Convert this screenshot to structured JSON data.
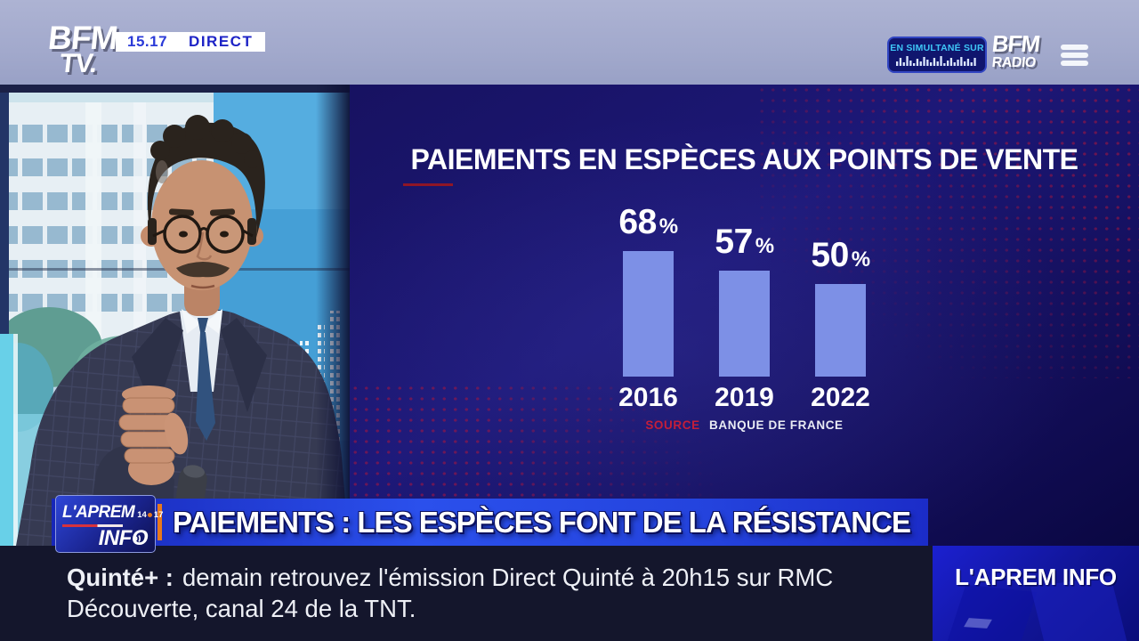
{
  "chart_data": {
    "type": "bar",
    "title": "PAIEMENTS EN ESPÈCES AUX POINTS DE VENTE",
    "categories": [
      "2016",
      "2019",
      "2022"
    ],
    "values": [
      68,
      57,
      50
    ],
    "value_labels": [
      "68",
      "57",
      "50"
    ],
    "unit": "%",
    "source_label": "SOURCE",
    "source_name": "BANQUE DE FRANCE",
    "ylim": [
      0,
      100
    ],
    "grid": false,
    "legend": false,
    "bar_color": "#7d90e6"
  },
  "top_bar": {
    "channel_logo": {
      "line1": "BFM",
      "line2": "TV."
    },
    "time": "15.17",
    "live_badge": "DIRECT",
    "simulcast_label": "EN SIMULTANÉ SUR",
    "radio_logo": {
      "line1": "BFM",
      "line2": "RADIO"
    }
  },
  "banner": {
    "show_logo": {
      "title": "L'APREM",
      "subtitle": "INFO",
      "hours_start": "14",
      "hours_end": "17"
    },
    "headline": "PAIEMENTS : LES ESPÈCES FONT DE LA RÉSISTANCE"
  },
  "ticker": {
    "lead": "Quinté+ :",
    "line1": "demain retrouvez l'émission Direct Quinté à 20h15 sur RMC",
    "line2": "Découverte, canal 24 de la TNT.",
    "program_label": "L'APREM INFO"
  },
  "colors": {
    "accent_red": "#c41e3a",
    "accent_orange": "#e8791c",
    "banner_blue": "#2b50ec",
    "bar_fill": "#7d90e6",
    "cyan_text": "#3ec6f6",
    "navy_bg": "#171261"
  },
  "icons": {
    "menu": "hamburger-menu-icon",
    "waveform": "audio-waveform-icon",
    "radio_o": "radio-waves-icon"
  }
}
